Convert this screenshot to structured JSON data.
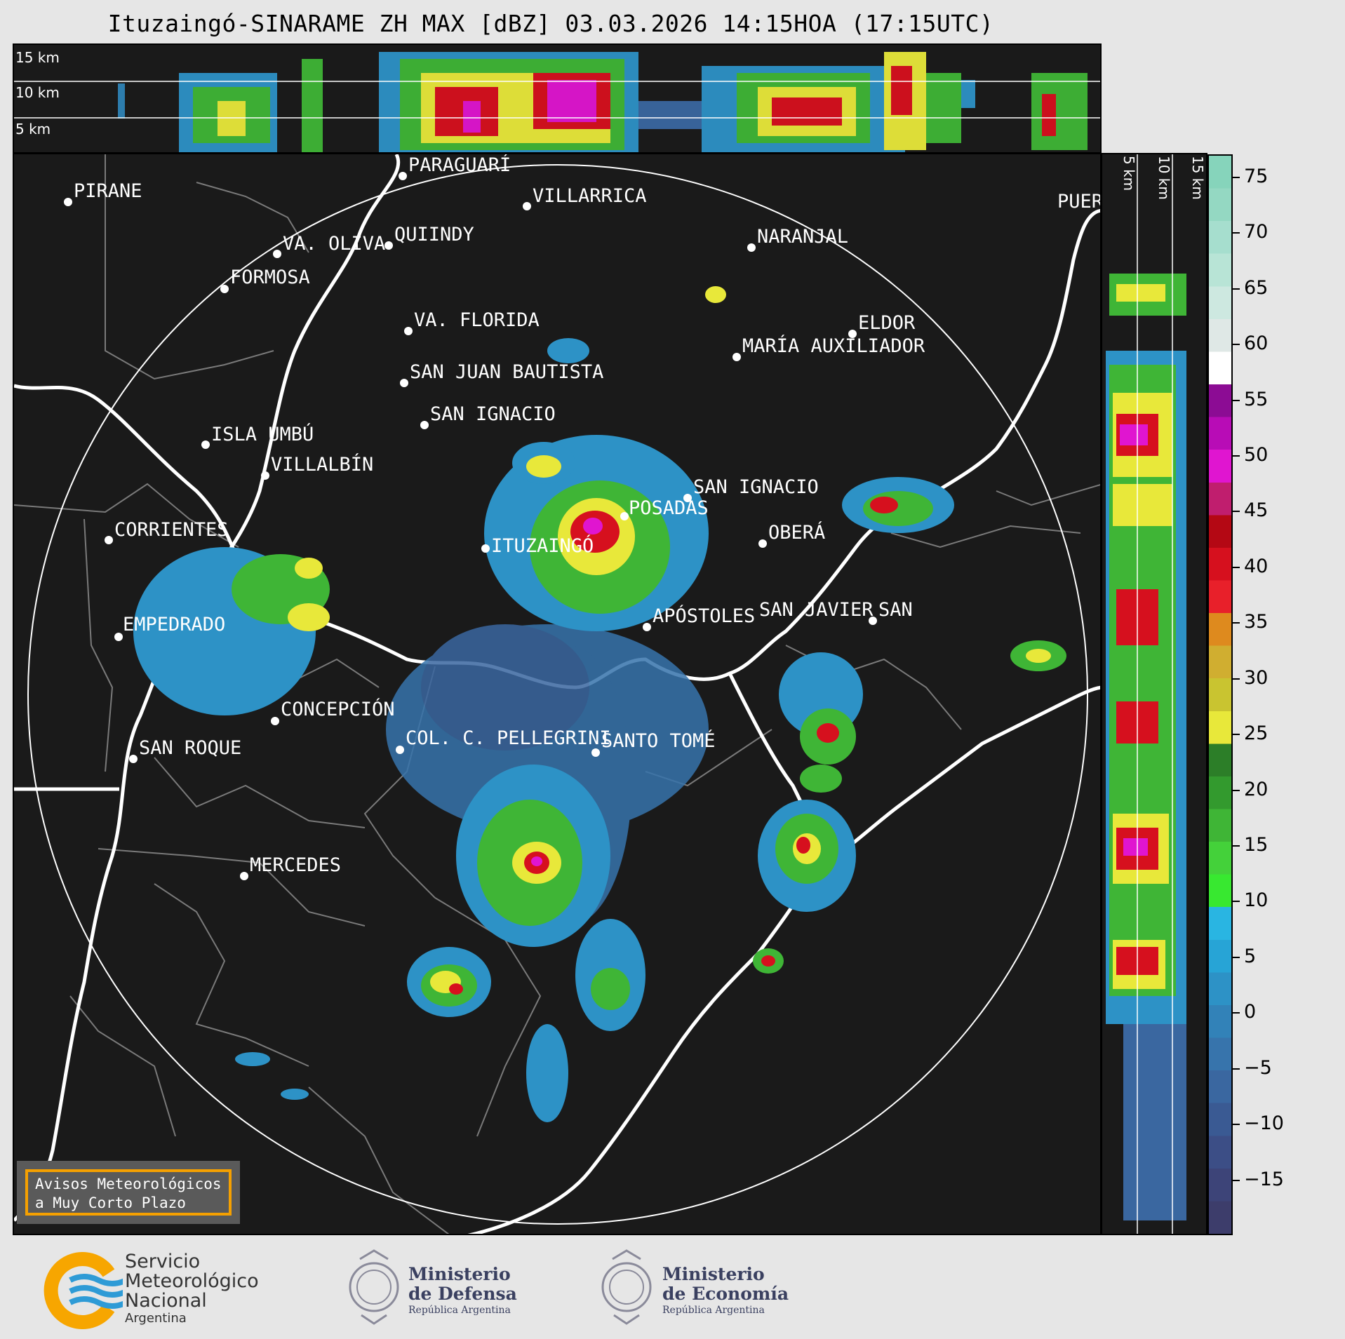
{
  "title": "Ituzaingó-SINARAME ZH MAX [dBZ] 03.03.2026 14:15HOA (17:15UTC)",
  "top_panel": {
    "levels": [
      "15 km",
      "10 km",
      "5 km"
    ]
  },
  "right_panel": {
    "levels": [
      "5 km",
      "10 km",
      "15 km"
    ]
  },
  "map": {
    "radar_site": "ITUZAINGÓ",
    "cities": [
      {
        "name": "PIRANE"
      },
      {
        "name": "PARAGUARÍ"
      },
      {
        "name": "VILLARRICA"
      },
      {
        "name": "VA. OLIVA"
      },
      {
        "name": "QUIINDY"
      },
      {
        "name": "NARANJAL"
      },
      {
        "name": "FORMOSA"
      },
      {
        "name": "PUER"
      },
      {
        "name": "VA. FLORIDA"
      },
      {
        "name": "ELDOR"
      },
      {
        "name": "MARÍA AUXILIADOR"
      },
      {
        "name": "SAN JUAN BAUTISTA"
      },
      {
        "name": "SAN IGNACIO"
      },
      {
        "name": "ISLA UMBÚ"
      },
      {
        "name": "VILLALBÍN"
      },
      {
        "name": "SAN IGNACIO"
      },
      {
        "name": "POSADAS"
      },
      {
        "name": "CORRIENTES"
      },
      {
        "name": "OBERÁ"
      },
      {
        "name": "APÓSTOLES"
      },
      {
        "name": "SAN JAVIER"
      },
      {
        "name": "SAN"
      },
      {
        "name": "EMPEDRADO"
      },
      {
        "name": "CONCEPCIÓN"
      },
      {
        "name": "COL. C. PELLEGRINI"
      },
      {
        "name": "SANTO TOMÉ"
      },
      {
        "name": "SAN ROQUE"
      },
      {
        "name": "MERCEDES"
      }
    ]
  },
  "colorbar": {
    "ticks": [
      "75",
      "70",
      "65",
      "60",
      "55",
      "50",
      "45",
      "40",
      "35",
      "30",
      "25",
      "20",
      "15",
      "10",
      "5",
      "0",
      "−5",
      "−10",
      "−15"
    ],
    "colors": [
      "#3d3d6b",
      "#3d4478",
      "#3c4e86",
      "#3a5a93",
      "#3a67a0",
      "#3774ac",
      "#3282b8",
      "#2d92c6",
      "#27a4d6",
      "#29b5e2",
      "#38e830",
      "#44d13a",
      "#3fb536",
      "#339a2e",
      "#2c7e28",
      "#e8e83a",
      "#c9c430",
      "#d0ae30",
      "#de8a1e",
      "#e8202a",
      "#d6101e",
      "#b40814",
      "#c01e6e",
      "#e015d0",
      "#b80cb6",
      "#8c0c94",
      "#ffffff",
      "#dfe8e6",
      "#cde8e0",
      "#b8e4d6",
      "#a6dece",
      "#94d8c2",
      "#86d4bb"
    ]
  },
  "aviso": {
    "line1": "Avisos Meteorológicos",
    "line2": "a Muy Corto Plazo"
  },
  "footer": {
    "smn_line1": "Servicio",
    "smn_line2": "Meteorológico",
    "smn_line3": "Nacional",
    "smn_line4": "Argentina",
    "def_line1": "Ministerio",
    "def_line2": "de Defensa",
    "def_line3": "República Argentina",
    "eco_line1": "Ministerio",
    "eco_line2": "de Economía",
    "eco_line3": "República Argentina",
    "smn_colors": {
      "orange": "#f7a600",
      "blue": "#2e9bd6"
    }
  }
}
